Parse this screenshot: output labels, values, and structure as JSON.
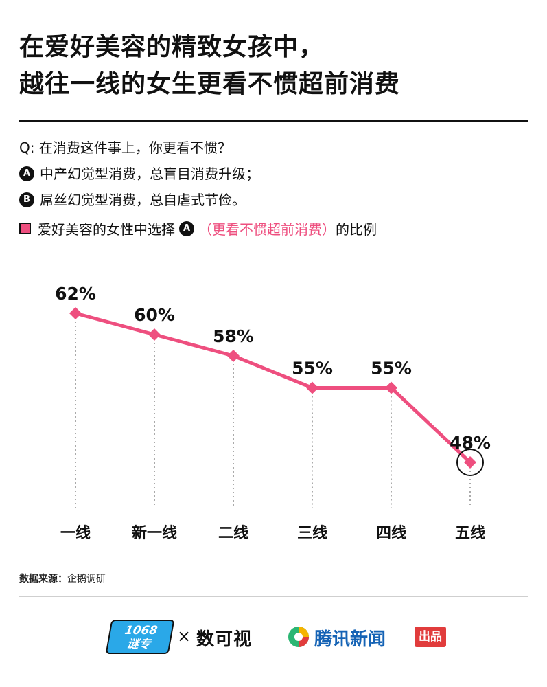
{
  "header": {
    "title_line1": "在爱好美容的精致女孩中，",
    "title_line2": "越往一线的女生更看不惯超前消费"
  },
  "question": {
    "q": "Q: 在消费这件事上，你更看不惯？",
    "option_a_marker": "A",
    "option_a": "中产幻觉型消费，总盲目消费升级；",
    "option_b_marker": "B",
    "option_b": "屌丝幻觉型消费，总自虐式节俭。"
  },
  "legend": {
    "prefix": "爱好美容的女性中选择",
    "marker": "A",
    "highlight": "（更看不惯超前消费）",
    "suffix": "的比例",
    "color": "#ee4f7f"
  },
  "chart_data": {
    "type": "line",
    "categories": [
      "一线",
      "新一线",
      "二线",
      "三线",
      "四线",
      "五线"
    ],
    "series": [
      {
        "values": [
          62,
          60,
          58,
          55,
          55,
          48
        ]
      }
    ],
    "data_labels": [
      "62%",
      "60%",
      "58%",
      "55%",
      "55%",
      "48%"
    ],
    "highlighted_category": "五线",
    "ylim": [
      44,
      64
    ],
    "grid": false,
    "line_color": "#ee4f7f"
  },
  "footer": {
    "source_label": "数据来源：",
    "source_value": "企鹅调研",
    "logo_a_text_1": "1068",
    "logo_a_text_2": "谜专",
    "times": "×",
    "logo_b_text": "数可视",
    "logo_c_text": "腾讯新闻",
    "logo_c_badge": "出品"
  }
}
